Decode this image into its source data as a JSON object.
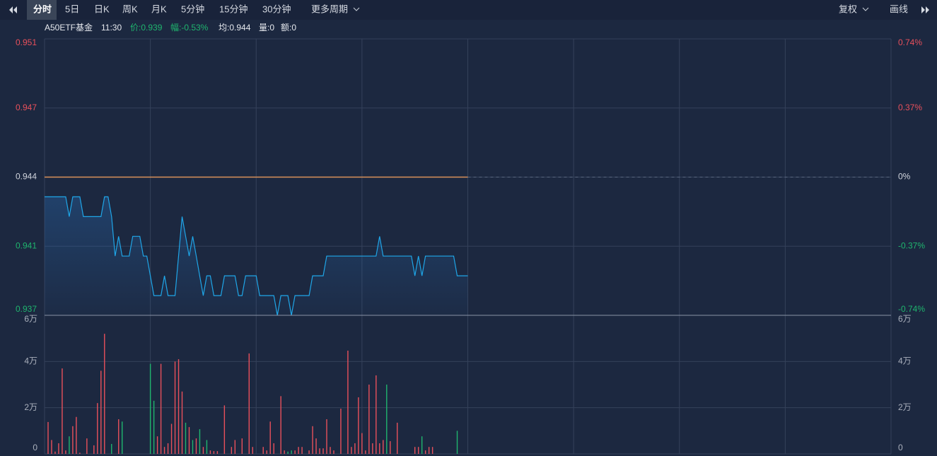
{
  "toolbar": {
    "tabs": [
      "分时",
      "5日",
      "日K",
      "周K",
      "月K",
      "5分钟",
      "15分钟",
      "30分钟"
    ],
    "active": 0,
    "more": "更多周期",
    "adjust": "复权",
    "draw": "画线"
  },
  "info": {
    "name": "A50ETF基金",
    "time": "11:30",
    "price": "价:0.939",
    "change": "幅:-0.53%",
    "avg": "均:0.944",
    "volume": "量:0",
    "amount": "额:0"
  },
  "chart_data": [
    {
      "type": "line",
      "xlim": [
        0,
        240
      ],
      "xticks": [
        30,
        60,
        90,
        120,
        150,
        180,
        210
      ],
      "ylim": [
        0.937,
        0.951
      ],
      "yticks": [
        0.951,
        {
          "value": 0.9475,
          "label": "0.947"
        },
        0.944,
        {
          "value": 0.9405,
          "label": "0.941"
        },
        0.937
      ],
      "y2lim": [
        -0.74,
        0.74
      ],
      "y2ticks": [
        {
          "value": 0.74,
          "label": "0.74%"
        },
        {
          "value": 0.37,
          "label": "0.37%"
        },
        {
          "value": 0,
          "label": "0%"
        },
        {
          "value": -0.37,
          "label": "-0.37%"
        },
        {
          "value": -0.74,
          "label": "-0.74%"
        }
      ],
      "baseline": 0.944,
      "baseline_color": "#d9925a",
      "grid": true,
      "up_color": "#e8505b",
      "down_color": "#1fb56e",
      "flat_color": "#d0d4dc",
      "series": [
        {
          "color": "#1fa6e8",
          "values": [
            0.943,
            0.943,
            0.943,
            0.943,
            0.943,
            0.943,
            0.943,
            0.942,
            0.943,
            0.943,
            0.943,
            0.942,
            0.942,
            0.942,
            0.942,
            0.942,
            0.942,
            0.943,
            0.943,
            0.942,
            0.94,
            0.941,
            0.94,
            0.94,
            0.94,
            0.941,
            0.941,
            0.941,
            0.94,
            0.94,
            0.939,
            0.938,
            0.938,
            0.938,
            0.939,
            0.938,
            0.938,
            0.938,
            0.94,
            0.942,
            0.941,
            0.94,
            0.941,
            0.94,
            0.939,
            0.938,
            0.939,
            0.939,
            0.938,
            0.938,
            0.938,
            0.939,
            0.939,
            0.939,
            0.939,
            0.938,
            0.938,
            0.939,
            0.939,
            0.939,
            0.939,
            0.938,
            0.938,
            0.938,
            0.938,
            0.938,
            0.937,
            0.938,
            0.938,
            0.938,
            0.937,
            0.938,
            0.938,
            0.938,
            0.938,
            0.938,
            0.939,
            0.939,
            0.939,
            0.939,
            0.94,
            0.94,
            0.94,
            0.94,
            0.94,
            0.94,
            0.94,
            0.94,
            0.94,
            0.94,
            0.94,
            0.94,
            0.94,
            0.94,
            0.94,
            0.941,
            0.94,
            0.94,
            0.94,
            0.94,
            0.94,
            0.94,
            0.94,
            0.94,
            0.94,
            0.939,
            0.94,
            0.939,
            0.94,
            0.94,
            0.94,
            0.94,
            0.94,
            0.94,
            0.94,
            0.94,
            0.94,
            0.939,
            0.939,
            0.939,
            0.939
          ]
        }
      ]
    },
    {
      "type": "bar",
      "xlim": [
        0,
        240
      ],
      "xticks": [
        30,
        60,
        90,
        120,
        150,
        180,
        210
      ],
      "ylim": [
        0,
        60000
      ],
      "yticks": [
        0,
        {
          "value": 20000,
          "label": "2万"
        },
        {
          "value": 40000,
          "label": "4万"
        },
        {
          "value": 60000,
          "label": "6万"
        }
      ],
      "grid": true,
      "up_color": "#e8505b",
      "down_color": "#1fb56e",
      "values": [
        0,
        13800,
        6000,
        1000,
        4600,
        37000,
        1500,
        7600,
        12000,
        16000,
        500,
        0,
        6700,
        0,
        3700,
        22000,
        36000,
        52000,
        0,
        4300,
        0,
        15000,
        14000,
        0,
        0,
        0,
        0,
        0,
        0,
        0,
        39000,
        23000,
        7600,
        39000,
        3000,
        4600,
        13000,
        40000,
        41000,
        27000,
        13500,
        11600,
        6000,
        6700,
        10700,
        3000,
        6000,
        1500,
        1200,
        1200,
        0,
        21000,
        0,
        3000,
        6000,
        0,
        6700,
        0,
        43500,
        3000,
        0,
        0,
        3000,
        1500,
        14000,
        4600,
        0,
        25000,
        1500,
        1000,
        1500,
        1500,
        3000,
        3000,
        0,
        1500,
        12000,
        6700,
        2400,
        2400,
        15000,
        3000,
        1500,
        0,
        19600,
        0,
        44700,
        3000,
        4600,
        24500,
        9000,
        1500,
        30000,
        4600,
        34000,
        4600,
        6000,
        30000,
        5500,
        0,
        13500,
        0,
        0,
        0,
        0,
        3000,
        3000,
        7600,
        1500,
        3000,
        3000,
        0,
        0,
        0,
        0,
        0,
        0,
        10000,
        0,
        0,
        0
      ],
      "directions": [
        "up",
        "up",
        "up",
        "up",
        "up",
        "up",
        "up",
        "down",
        "up",
        "up",
        "up",
        "up",
        "up",
        "up",
        "up",
        "up",
        "up",
        "up",
        "up",
        "down",
        "up",
        "up",
        "down",
        "up",
        "up",
        "up",
        "up",
        "up",
        "up",
        "up",
        "down",
        "down",
        "up",
        "up",
        "up",
        "up",
        "up",
        "up",
        "up",
        "up",
        "down",
        "up",
        "down",
        "up",
        "down",
        "up",
        "down",
        "up",
        "up",
        "up",
        "up",
        "up",
        "up",
        "up",
        "up",
        "up",
        "up",
        "up",
        "up",
        "up",
        "up",
        "up",
        "up",
        "up",
        "up",
        "up",
        "up",
        "up",
        "up",
        "down",
        "down",
        "up",
        "up",
        "up",
        "up",
        "up",
        "up",
        "up",
        "up",
        "up",
        "up",
        "up",
        "up",
        "up",
        "up",
        "up",
        "up",
        "up",
        "up",
        "up",
        "up",
        "up",
        "up",
        "up",
        "up",
        "up",
        "up",
        "down",
        "up",
        "up",
        "up",
        "up",
        "up",
        "up",
        "up",
        "up",
        "up",
        "down",
        "up",
        "up",
        "up",
        "up",
        "up",
        "up",
        "up",
        "up",
        "up",
        "down",
        "up",
        "up",
        "up"
      ]
    }
  ]
}
